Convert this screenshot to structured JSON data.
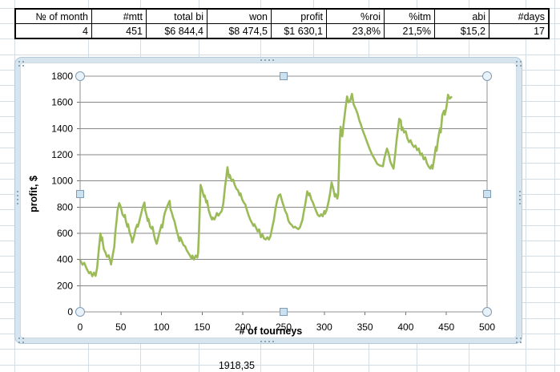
{
  "table": {
    "headers": [
      "№ of month",
      "#mtt",
      "total bi",
      "won",
      "profit",
      "%roi",
      "%itm",
      "abi",
      "#days"
    ],
    "values": [
      "4",
      "451",
      "$6 844,4",
      "$8 474,5",
      "$1 630,1",
      "23,8%",
      "21,5%",
      "$15,2",
      "17"
    ]
  },
  "cells": {
    "below_chart": "1918,35"
  },
  "colors": {
    "series_line": "#9bbb59",
    "plot_gridline": "#878787",
    "axis_line": "#6e6e6e",
    "sheet_gridline": "#d4dce6",
    "table_border": "#000000",
    "frame_band": "#d7e5ef",
    "handle_border": "#7f9cb4",
    "handle_circle_fill": "#eaf2f9",
    "handle_square_fill": "#cbe1f0"
  },
  "chart_data": {
    "type": "line",
    "title": "",
    "xlabel": "# of tourneys",
    "ylabel": "profit, $",
    "xlim": [
      0,
      500
    ],
    "ylim": [
      0,
      1800
    ],
    "x_ticks": [
      0,
      50,
      100,
      150,
      200,
      250,
      300,
      350,
      400,
      450,
      500
    ],
    "y_ticks": [
      0,
      200,
      400,
      600,
      800,
      1000,
      1200,
      1400,
      1600,
      1800
    ],
    "grid": true,
    "legend_position": "none",
    "selection": "plot-area-selected, chart object selected",
    "series": [
      {
        "name": "profit",
        "color": "#9bbb59",
        "points": [
          [
            0,
            395
          ],
          [
            3,
            360
          ],
          [
            5,
            375
          ],
          [
            8,
            330
          ],
          [
            11,
            295
          ],
          [
            13,
            305
          ],
          [
            15,
            272
          ],
          [
            17,
            300
          ],
          [
            19,
            275
          ],
          [
            21,
            340
          ],
          [
            23,
            480
          ],
          [
            25,
            600
          ],
          [
            26,
            545
          ],
          [
            27,
            570
          ],
          [
            29,
            480
          ],
          [
            31,
            455
          ],
          [
            33,
            420
          ],
          [
            35,
            432
          ],
          [
            37,
            390
          ],
          [
            38,
            362
          ],
          [
            40,
            430
          ],
          [
            42,
            500
          ],
          [
            43,
            590
          ],
          [
            44,
            650
          ],
          [
            45,
            705
          ],
          [
            46,
            775
          ],
          [
            48,
            830
          ],
          [
            50,
            800
          ],
          [
            52,
            745
          ],
          [
            54,
            725
          ],
          [
            55,
            740
          ],
          [
            56,
            700
          ],
          [
            58,
            650
          ],
          [
            59,
            670
          ],
          [
            61,
            600
          ],
          [
            63,
            570
          ],
          [
            64,
            530
          ],
          [
            66,
            570
          ],
          [
            68,
            630
          ],
          [
            70,
            665
          ],
          [
            71,
            650
          ],
          [
            73,
            700
          ],
          [
            75,
            750
          ],
          [
            77,
            800
          ],
          [
            79,
            835
          ],
          [
            80,
            775
          ],
          [
            82,
            730
          ],
          [
            83,
            695
          ],
          [
            84,
            710
          ],
          [
            86,
            650
          ],
          [
            88,
            635
          ],
          [
            89,
            650
          ],
          [
            91,
            580
          ],
          [
            92,
            555
          ],
          [
            94,
            520
          ],
          [
            95,
            540
          ],
          [
            96,
            570
          ],
          [
            98,
            620
          ],
          [
            100,
            665
          ],
          [
            101,
            645
          ],
          [
            103,
            725
          ],
          [
            104,
            755
          ],
          [
            106,
            790
          ],
          [
            108,
            820
          ],
          [
            110,
            848
          ],
          [
            111,
            785
          ],
          [
            113,
            750
          ],
          [
            114,
            725
          ],
          [
            116,
            690
          ],
          [
            118,
            635
          ],
          [
            120,
            590
          ],
          [
            122,
            540
          ],
          [
            123,
            570
          ],
          [
            125,
            540
          ],
          [
            127,
            510
          ],
          [
            129,
            500
          ],
          [
            131,
            470
          ],
          [
            133,
            450
          ],
          [
            135,
            430
          ],
          [
            137,
            405
          ],
          [
            138,
            430
          ],
          [
            140,
            400
          ],
          [
            142,
            430
          ],
          [
            144,
            415
          ],
          [
            145,
            450
          ],
          [
            146,
            600
          ],
          [
            147,
            800
          ],
          [
            148,
            970
          ],
          [
            150,
            930
          ],
          [
            152,
            880
          ],
          [
            153,
            890
          ],
          [
            155,
            835
          ],
          [
            156,
            850
          ],
          [
            158,
            775
          ],
          [
            160,
            735
          ],
          [
            162,
            705
          ],
          [
            163,
            720
          ],
          [
            165,
            705
          ],
          [
            167,
            735
          ],
          [
            168,
            755
          ],
          [
            170,
            735
          ],
          [
            172,
            755
          ],
          [
            174,
            770
          ],
          [
            176,
            830
          ],
          [
            178,
            950
          ],
          [
            180,
            1050
          ],
          [
            181,
            1105
          ],
          [
            183,
            1025
          ],
          [
            184,
            1045
          ],
          [
            186,
            1000
          ],
          [
            188,
            1010
          ],
          [
            190,
            970
          ],
          [
            192,
            940
          ],
          [
            194,
            928
          ],
          [
            196,
            890
          ],
          [
            197,
            905
          ],
          [
            199,
            860
          ],
          [
            201,
            836
          ],
          [
            203,
            820
          ],
          [
            205,
            775
          ],
          [
            207,
            737
          ],
          [
            209,
            705
          ],
          [
            211,
            680
          ],
          [
            213,
            657
          ],
          [
            214,
            670
          ],
          [
            216,
            645
          ],
          [
            218,
            615
          ],
          [
            220,
            630
          ],
          [
            222,
            570
          ],
          [
            224,
            590
          ],
          [
            226,
            560
          ],
          [
            228,
            553
          ],
          [
            230,
            570
          ],
          [
            232,
            553
          ],
          [
            234,
            580
          ],
          [
            236,
            645
          ],
          [
            238,
            700
          ],
          [
            240,
            785
          ],
          [
            242,
            850
          ],
          [
            244,
            890
          ],
          [
            246,
            897
          ],
          [
            248,
            848
          ],
          [
            250,
            810
          ],
          [
            252,
            770
          ],
          [
            254,
            745
          ],
          [
            256,
            695
          ],
          [
            258,
            675
          ],
          [
            260,
            663
          ],
          [
            262,
            645
          ],
          [
            264,
            650
          ],
          [
            266,
            640
          ],
          [
            268,
            632
          ],
          [
            270,
            645
          ],
          [
            272,
            682
          ],
          [
            273,
            700
          ],
          [
            275,
            770
          ],
          [
            277,
            835
          ],
          [
            279,
            920
          ],
          [
            281,
            890
          ],
          [
            282,
            905
          ],
          [
            284,
            860
          ],
          [
            286,
            835
          ],
          [
            288,
            800
          ],
          [
            290,
            770
          ],
          [
            292,
            740
          ],
          [
            294,
            730
          ],
          [
            296,
            745
          ],
          [
            298,
            730
          ],
          [
            300,
            770
          ],
          [
            301,
            750
          ],
          [
            303,
            780
          ],
          [
            305,
            835
          ],
          [
            307,
            900
          ],
          [
            309,
            988
          ],
          [
            311,
            940
          ],
          [
            313,
            880
          ],
          [
            314,
            900
          ],
          [
            316,
            865
          ],
          [
            317,
            900
          ],
          [
            318,
            1100
          ],
          [
            319,
            1300
          ],
          [
            320,
            1413
          ],
          [
            322,
            1340
          ],
          [
            324,
            1450
          ],
          [
            326,
            1550
          ],
          [
            328,
            1645
          ],
          [
            330,
            1600
          ],
          [
            332,
            1615
          ],
          [
            334,
            1665
          ],
          [
            336,
            1585
          ],
          [
            339,
            1545
          ],
          [
            341,
            1510
          ],
          [
            343,
            1462
          ],
          [
            345,
            1430
          ],
          [
            347,
            1388
          ],
          [
            350,
            1340
          ],
          [
            353,
            1290
          ],
          [
            356,
            1240
          ],
          [
            359,
            1198
          ],
          [
            362,
            1165
          ],
          [
            365,
            1130
          ],
          [
            368,
            1118
          ],
          [
            372,
            1112
          ],
          [
            374,
            1180
          ],
          [
            377,
            1247
          ],
          [
            379,
            1210
          ],
          [
            381,
            1150
          ],
          [
            383,
            1120
          ],
          [
            385,
            1094
          ],
          [
            387,
            1200
          ],
          [
            389,
            1320
          ],
          [
            391,
            1420
          ],
          [
            392,
            1474
          ],
          [
            394,
            1462
          ],
          [
            395,
            1388
          ],
          [
            396,
            1410
          ],
          [
            398,
            1370
          ],
          [
            400,
            1380
          ],
          [
            402,
            1327
          ],
          [
            404,
            1296
          ],
          [
            406,
            1310
          ],
          [
            408,
            1278
          ],
          [
            410,
            1260
          ],
          [
            412,
            1270
          ],
          [
            414,
            1235
          ],
          [
            416,
            1247
          ],
          [
            418,
            1198
          ],
          [
            420,
            1210
          ],
          [
            422,
            1165
          ],
          [
            424,
            1180
          ],
          [
            426,
            1136
          ],
          [
            428,
            1112
          ],
          [
            430,
            1094
          ],
          [
            432,
            1120
          ],
          [
            433,
            1094
          ],
          [
            435,
            1173
          ],
          [
            437,
            1260
          ],
          [
            438,
            1230
          ],
          [
            440,
            1327
          ],
          [
            442,
            1400
          ],
          [
            443,
            1370
          ],
          [
            445,
            1505
          ],
          [
            447,
            1536
          ],
          [
            448,
            1505
          ],
          [
            450,
            1560
          ],
          [
            452,
            1658
          ],
          [
            454,
            1628
          ],
          [
            456,
            1640
          ]
        ]
      }
    ]
  }
}
